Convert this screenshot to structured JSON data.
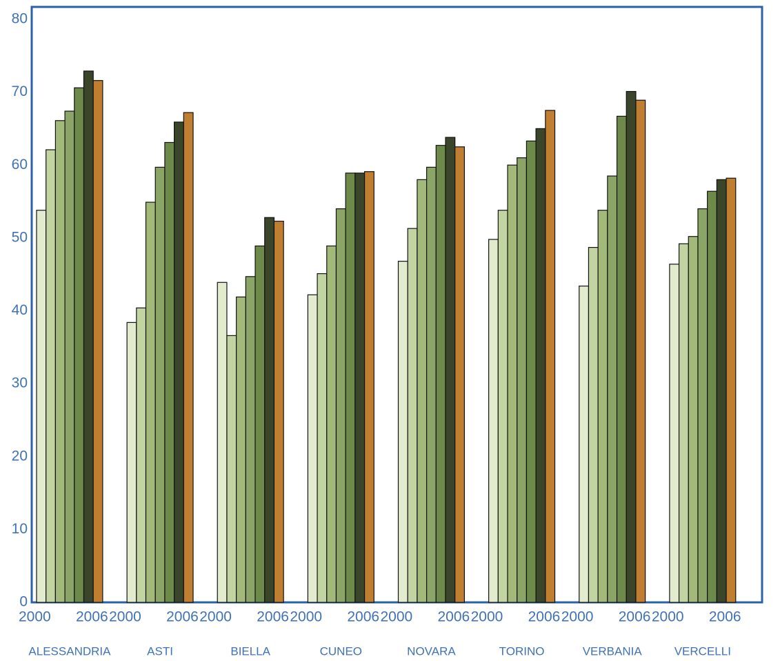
{
  "chart_data": {
    "type": "bar",
    "categories": [
      "ALESSANDRIA",
      "ASTI",
      "BIELLA",
      "CUNEO",
      "NOVARA",
      "TORINO",
      "VERBANIA",
      "VERCELLI"
    ],
    "group_labels": [
      "2000",
      "2006"
    ],
    "series": [
      {
        "color": "#e3ebcf",
        "values": [
          53.8,
          38.4,
          43.9,
          42.2,
          46.8,
          49.8,
          43.4,
          46.4
        ]
      },
      {
        "color": "#c3d4a3",
        "values": [
          62.1,
          40.4,
          36.6,
          45.1,
          51.3,
          53.8,
          48.7,
          49.2
        ]
      },
      {
        "color": "#a3b97a",
        "values": [
          66.1,
          54.9,
          41.9,
          48.9,
          58.0,
          60.0,
          53.8,
          50.2
        ]
      },
      {
        "color": "#8aa566",
        "values": [
          67.4,
          59.7,
          44.7,
          54.0,
          59.7,
          61.0,
          58.5,
          54.0
        ]
      },
      {
        "color": "#6e8a4a",
        "values": [
          70.6,
          63.1,
          48.9,
          58.9,
          62.7,
          63.3,
          66.7,
          56.4
        ]
      },
      {
        "color": "#3a4529",
        "values": [
          72.9,
          65.9,
          52.8,
          58.9,
          63.8,
          65.0,
          70.1,
          58.0
        ]
      },
      {
        "color": "#c07f30",
        "values": [
          71.6,
          67.2,
          52.3,
          59.1,
          62.5,
          67.5,
          68.9,
          58.2
        ]
      }
    ],
    "ylim": [
      0,
      81.7
    ],
    "yticks": [
      0,
      10,
      20,
      30,
      40,
      50,
      60,
      70,
      80
    ],
    "grid": false
  }
}
